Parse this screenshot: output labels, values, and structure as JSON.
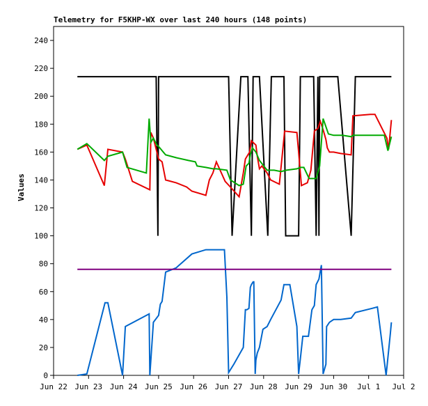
{
  "chart_data": {
    "type": "line",
    "title": "Telemetry for F5KHP-WX over last 240 hours (148 points)",
    "xlabel": "",
    "ylabel": "Values",
    "xlim": [
      0,
      10
    ],
    "ylim": [
      0,
      250
    ],
    "yticks": [
      0,
      20,
      40,
      60,
      80,
      100,
      120,
      140,
      160,
      180,
      200,
      220,
      240
    ],
    "xticks": [
      {
        "x": 0,
        "label": "Jun 22"
      },
      {
        "x": 1,
        "label": "Jun 23"
      },
      {
        "x": 2,
        "label": "Jun 24"
      },
      {
        "x": 3,
        "label": "Jun 25"
      },
      {
        "x": 4,
        "label": "Jun 26"
      },
      {
        "x": 5,
        "label": "Jun 27"
      },
      {
        "x": 6,
        "label": "Jun 28"
      },
      {
        "x": 7,
        "label": "Jun 29"
      },
      {
        "x": 8,
        "label": "Jun 30"
      },
      {
        "x": 9,
        "label": "Jul 1"
      },
      {
        "x": 10,
        "label": "Jul 2"
      }
    ],
    "grid": false,
    "series": [
      {
        "color": "#000000",
        "x": [
          0.68,
          2.75,
          2.93,
          2.98,
          3.0,
          5.0,
          5.1,
          5.35,
          5.55,
          5.65,
          5.7,
          5.88,
          6.12,
          6.22,
          6.5,
          6.58,
          6.63,
          6.75,
          7.0,
          7.05,
          7.1,
          7.43,
          7.5,
          7.55,
          7.58,
          7.6,
          7.7,
          7.8,
          7.85,
          7.9,
          7.92,
          7.93,
          8.02,
          8.07,
          8.12,
          8.5,
          8.62,
          9.08,
          9.13,
          9.5,
          9.65
        ],
        "values": [
          214,
          214,
          214,
          100,
          214,
          214,
          100,
          214,
          214,
          100,
          214,
          214,
          100,
          214,
          214,
          214,
          100,
          100,
          100,
          214,
          214,
          214,
          100,
          214,
          100,
          214,
          214,
          214,
          214,
          214,
          214,
          214,
          214,
          214,
          214,
          100,
          214,
          214,
          214,
          214,
          214
        ]
      },
      {
        "color": "#e60000",
        "x": [
          0.68,
          0.95,
          1.45,
          1.55,
          1.97,
          2.05,
          2.25,
          2.75,
          2.78,
          2.85,
          3.0,
          3.1,
          3.2,
          3.5,
          3.8,
          3.95,
          4.35,
          4.45,
          4.55,
          4.65,
          4.9,
          5.05,
          5.3,
          5.42,
          5.48,
          5.55,
          5.6,
          5.65,
          5.78,
          5.82,
          5.88,
          5.95,
          6.1,
          6.2,
          6.45,
          6.6,
          6.95,
          7.0,
          7.08,
          7.25,
          7.35,
          7.45,
          7.55,
          7.62,
          7.7,
          7.78,
          7.82,
          7.88,
          8.0,
          8.2,
          8.5,
          8.55,
          9.05,
          9.18,
          9.52,
          9.57,
          9.65
        ],
        "values": [
          162,
          165,
          136,
          162,
          160,
          155,
          139,
          133,
          174,
          170,
          155,
          153,
          140,
          138,
          135,
          132,
          129,
          140,
          145,
          153,
          139,
          135,
          128,
          145,
          155,
          158,
          160,
          168,
          165,
          157,
          148,
          150,
          145,
          140,
          137,
          175,
          174,
          160,
          136,
          138,
          147,
          175,
          177,
          182,
          176,
          169,
          163,
          160,
          160,
          159,
          158,
          186,
          187,
          187,
          170,
          162,
          183
        ]
      },
      {
        "color": "#00aa00",
        "x": [
          0.68,
          0.95,
          1.45,
          1.55,
          1.97,
          2.1,
          2.65,
          2.73,
          2.78,
          2.85,
          2.95,
          3.0,
          3.2,
          3.5,
          3.85,
          4.05,
          4.1,
          4.35,
          4.55,
          4.65,
          4.95,
          5.05,
          5.3,
          5.42,
          5.5,
          5.58,
          5.62,
          5.68,
          5.78,
          5.88,
          6.1,
          6.3,
          6.5,
          6.65,
          6.95,
          7.05,
          7.15,
          7.3,
          7.5,
          7.6,
          7.7,
          7.85,
          8.0,
          8.25,
          8.5,
          8.55,
          9.05,
          9.2,
          9.45,
          9.55,
          9.62,
          9.65
        ],
        "values": [
          162,
          166,
          154,
          157,
          160,
          149,
          145,
          184,
          167,
          170,
          165,
          164,
          158,
          156,
          154,
          153,
          150,
          149,
          148,
          148,
          147,
          140,
          136,
          137,
          150,
          152,
          158,
          163,
          160,
          154,
          147,
          147,
          146,
          147,
          148,
          149,
          149,
          141,
          141,
          150,
          184,
          173,
          172,
          172,
          171,
          172,
          172,
          172,
          172,
          161,
          168,
          171
        ]
      },
      {
        "color": "#0066cc",
        "x": [
          0.68,
          0.95,
          1.47,
          1.55,
          1.97,
          2.05,
          2.73,
          2.75,
          2.85,
          3.0,
          3.05,
          3.1,
          3.2,
          3.5,
          3.95,
          4.35,
          4.88,
          4.95,
          5.0,
          5.05,
          5.15,
          5.42,
          5.48,
          5.52,
          5.58,
          5.62,
          5.65,
          5.7,
          5.72,
          5.76,
          5.78,
          5.82,
          5.88,
          5.98,
          6.1,
          6.2,
          6.5,
          6.58,
          6.63,
          6.75,
          6.95,
          7.0,
          7.05,
          7.12,
          7.2,
          7.28,
          7.38,
          7.45,
          7.5,
          7.58,
          7.65,
          7.7,
          7.78,
          7.8,
          7.88,
          8.0,
          8.2,
          8.5,
          8.62,
          9.1,
          9.25,
          9.5,
          9.62,
          9.65
        ],
        "values": [
          0,
          1,
          52,
          52,
          0,
          35,
          44,
          0,
          38,
          43,
          51,
          53,
          74,
          77,
          87,
          90,
          90,
          56,
          2,
          4,
          8,
          20,
          47,
          47,
          48,
          63,
          65,
          67,
          67,
          1,
          11,
          16,
          20,
          33,
          35,
          40,
          54,
          65,
          65,
          65,
          35,
          1,
          12,
          28,
          28,
          28,
          47,
          50,
          65,
          69,
          79,
          1,
          8,
          35,
          38,
          40,
          40,
          41,
          45,
          48,
          49,
          0,
          30,
          38
        ]
      },
      {
        "color": "#800080",
        "x": [
          0.68,
          9.65
        ],
        "values": [
          76,
          76
        ]
      }
    ]
  }
}
